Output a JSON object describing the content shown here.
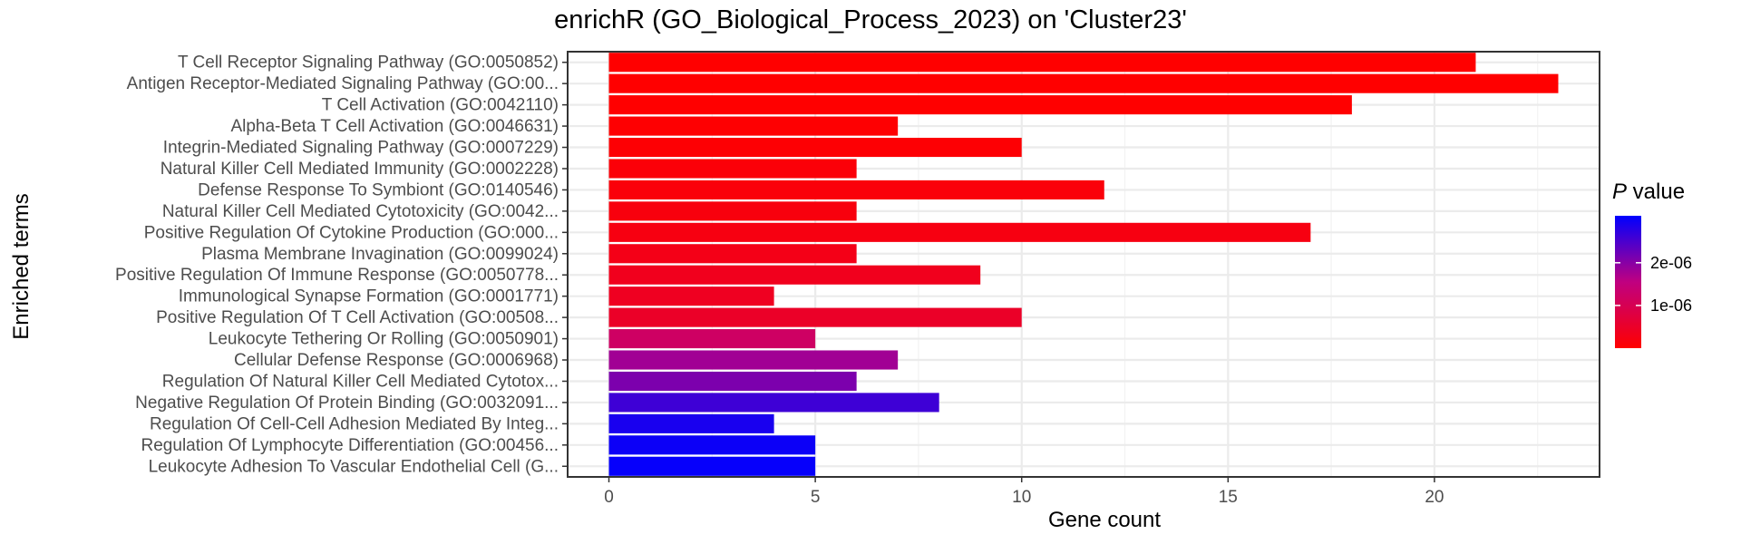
{
  "chart_data": {
    "type": "bar",
    "orientation": "horizontal",
    "title": "enrichR (GO_Biological_Process_2023) on 'Cluster23'",
    "xlabel": "Gene count",
    "ylabel": "Enriched terms",
    "xlim": [
      -1,
      24
    ],
    "x_ticks": [
      0,
      5,
      10,
      15,
      20
    ],
    "grid": true,
    "categories": [
      "T Cell Receptor Signaling Pathway (GO:0050852)",
      "Antigen Receptor-Mediated Signaling Pathway (GO:00...",
      "T Cell Activation (GO:0042110)",
      "Alpha-Beta T Cell Activation (GO:0046631)",
      "Integrin-Mediated Signaling Pathway (GO:0007229)",
      "Natural Killer Cell Mediated Immunity (GO:0002228)",
      "Defense Response To Symbiont (GO:0140546)",
      "Natural Killer Cell Mediated Cytotoxicity (GO:0042...",
      "Positive Regulation Of Cytokine Production (GO:000...",
      "Plasma Membrane Invagination (GO:0099024)",
      "Positive Regulation Of Immune Response (GO:0050778...",
      "Immunological Synapse Formation (GO:0001771)",
      "Positive Regulation Of T Cell Activation (GO:00508...",
      "Leukocyte Tethering Or Rolling (GO:0050901)",
      "Cellular Defense Response (GO:0006968)",
      "Regulation Of Natural Killer Cell Mediated Cytotox...",
      "Negative Regulation Of Protein Binding (GO:0032091...",
      "Regulation Of Cell-Cell Adhesion Mediated By Integ...",
      "Regulation Of Lymphocyte Differentiation (GO:00456...",
      "Leukocyte Adhesion To Vascular Endothelial Cell (G..."
    ],
    "values": [
      21,
      23,
      18,
      7,
      10,
      6,
      12,
      6,
      17,
      6,
      9,
      4,
      10,
      5,
      7,
      6,
      8,
      4,
      5,
      5
    ],
    "p_values": [
      1e-09,
      2e-09,
      5e-09,
      2e-08,
      5e-08,
      1e-07,
      1.2e-07,
      1.6e-07,
      2e-07,
      2.8e-07,
      3.5e-07,
      4e-07,
      4.8e-07,
      1.2e-06,
      1.8e-06,
      2.1e-06,
      2.6e-06,
      2.9e-06,
      3e-06,
      3.05e-06
    ],
    "legend": {
      "title_italic": "P",
      "title_rest": " value",
      "placement": "right",
      "ticks": [
        "1e-06",
        "2e-06"
      ],
      "tick_values": [
        1e-06,
        2e-06
      ],
      "range": [
        0,
        3.1e-06
      ],
      "low_color": "#ff0000",
      "high_color": "#0000ff"
    }
  }
}
